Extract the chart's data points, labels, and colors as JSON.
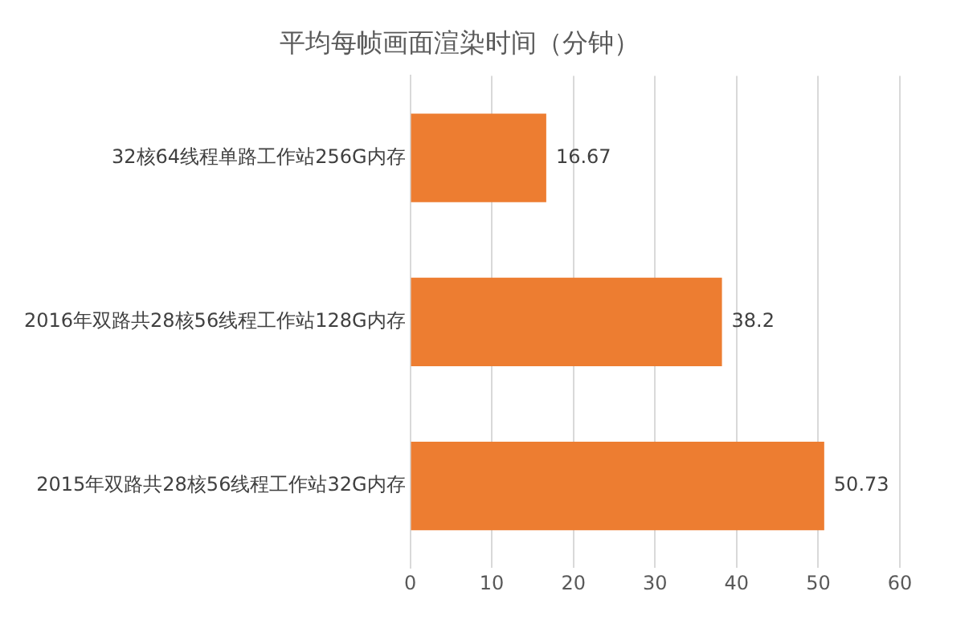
{
  "chart_data": {
    "type": "bar",
    "orientation": "horizontal",
    "title": "平均每帧画面渲染时间（分钟）",
    "categories": [
      "32核64线程单路工作站256G内存",
      "2016年双路共28核56线程工作站128G内存",
      "2015年双路共28核56线程工作站32G内存"
    ],
    "values": [
      16.67,
      38.2,
      50.73
    ],
    "color": "#ed7d31",
    "xlim": [
      0,
      60
    ],
    "xticks": [
      0,
      10,
      20,
      30,
      40,
      50,
      60
    ],
    "grid": "x",
    "data_labels": true
  }
}
